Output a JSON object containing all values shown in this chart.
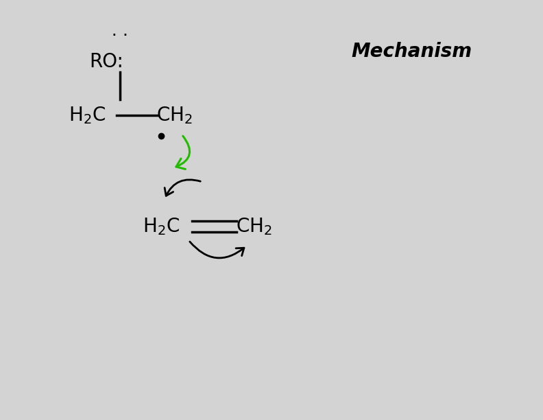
{
  "background_color": "#d3d3d3",
  "title_text": "Mechanism",
  "title_fontsize": 20,
  "black": "#000000",
  "green": "#22bb00",
  "figsize": [
    7.92,
    6.12
  ],
  "dpi": 100
}
